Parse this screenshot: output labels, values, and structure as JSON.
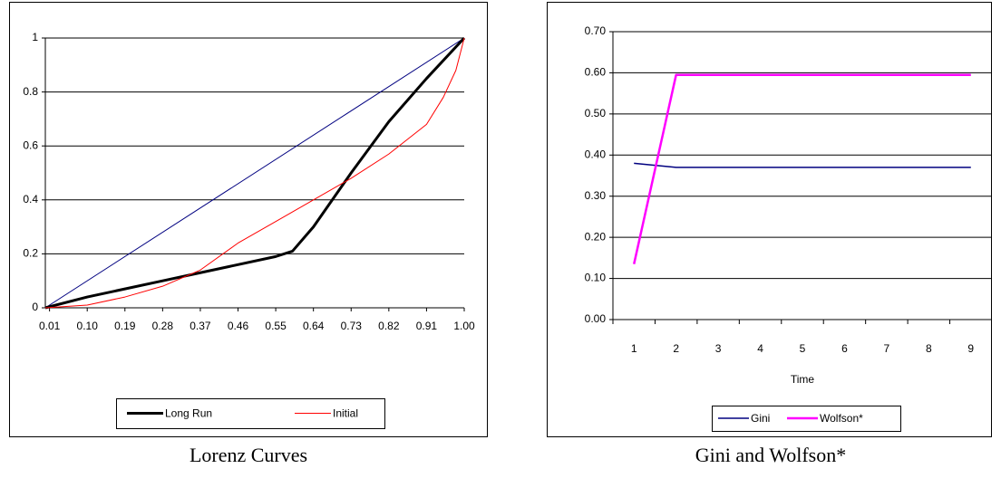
{
  "chart_data": [
    {
      "type": "line",
      "caption": "Lorenz Curves",
      "xlim": [
        0,
        1
      ],
      "ylim": [
        0,
        1
      ],
      "xticks": [
        0.01,
        {
          "value": 0.1,
          "label": "0.10"
        },
        0.19,
        0.28,
        0.37,
        0.46,
        0.55,
        0.64,
        0.73,
        0.82,
        0.91,
        {
          "value": 1,
          "label": "1.00"
        }
      ],
      "yticks": [
        0,
        0.2,
        0.4,
        0.6,
        0.8,
        1
      ],
      "grid": true,
      "legend": "bottom",
      "series": [
        {
          "color": "#000080",
          "linewidth": 1,
          "x": [
            0,
            1
          ],
          "values": [
            0,
            1
          ]
        },
        {
          "name": "Long Run",
          "color": "#000000",
          "linewidth": 3,
          "x": [
            0,
            0.1,
            0.19,
            0.28,
            0.37,
            0.46,
            0.55,
            0.59,
            0.64,
            0.73,
            0.82,
            0.91,
            1
          ],
          "values": [
            0,
            0.04,
            0.07,
            0.1,
            0.13,
            0.16,
            0.19,
            0.21,
            0.3,
            0.5,
            0.69,
            0.85,
            1
          ]
        },
        {
          "name": "Initial",
          "color": "#ff0000",
          "linewidth": 1,
          "x": [
            0,
            0.1,
            0.19,
            0.28,
            0.37,
            0.46,
            0.55,
            0.64,
            0.73,
            0.82,
            0.91,
            0.95,
            0.98,
            1
          ],
          "values": [
            0,
            0.01,
            0.04,
            0.08,
            0.14,
            0.24,
            0.32,
            0.4,
            0.48,
            0.57,
            0.68,
            0.78,
            0.88,
            1
          ]
        }
      ]
    },
    {
      "type": "line",
      "caption": "Gini and Wolfson*",
      "x_label": "Time",
      "categories": [
        "1",
        "2",
        "3",
        "4",
        "5",
        "6",
        "7",
        "8",
        "9"
      ],
      "ylim": [
        0,
        0.7
      ],
      "yticks": [
        {
          "value": 0,
          "label": "0.00"
        },
        {
          "value": 0.1,
          "label": "0.10"
        },
        {
          "value": 0.2,
          "label": "0.20"
        },
        {
          "value": 0.3,
          "label": "0.30"
        },
        {
          "value": 0.4,
          "label": "0.40"
        },
        {
          "value": 0.5,
          "label": "0.50"
        },
        {
          "value": 0.6,
          "label": "0.60"
        },
        {
          "value": 0.7,
          "label": "0.70"
        }
      ],
      "grid": true,
      "legend": "bottom",
      "series": [
        {
          "name": "Gini",
          "color": "#000080",
          "linewidth": 1.5,
          "values": [
            0.38,
            0.37,
            0.37,
            0.37,
            0.37,
            0.37,
            0.37,
            0.37,
            0.37
          ]
        },
        {
          "name": "Wolfson*",
          "color": "#ff00ff",
          "linewidth": 2.5,
          "values": [
            0.135,
            0.595,
            0.595,
            0.595,
            0.595,
            0.595,
            0.595,
            0.595,
            0.595
          ]
        }
      ]
    }
  ]
}
